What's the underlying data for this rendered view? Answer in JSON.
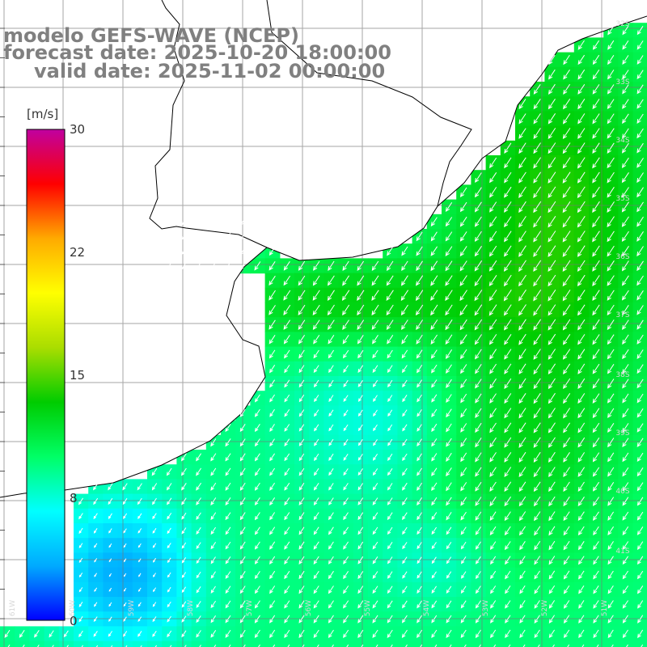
{
  "header": {
    "model_line": "modelo GEFS-WAVE (NCEP)",
    "forecast_line": "forecast date: 2025-10-20 18:00:00",
    "valid_line": "valid date: 2025-11-02 00:00:00"
  },
  "colorbar": {
    "unit": "[m/s]",
    "ticks": [
      {
        "label": "30",
        "value": 30
      },
      {
        "label": "22",
        "value": 22
      },
      {
        "label": "15",
        "value": 15
      },
      {
        "label": "8",
        "value": 8
      },
      {
        "label": "0",
        "value": 0
      }
    ],
    "min": 0,
    "max": 30,
    "colors": [
      "#0000ff",
      "#00aaff",
      "#00ffff",
      "#00ff66",
      "#00cc00",
      "#aadd00",
      "#ffff00",
      "#ffaa00",
      "#ff0000",
      "#c000a0"
    ]
  },
  "map": {
    "lat_labels": [
      "32S",
      "33S",
      "34S",
      "35S",
      "36S",
      "37S",
      "38S",
      "39S",
      "40S",
      "41S"
    ],
    "lon_labels": [
      "61W",
      "60W",
      "59W",
      "58W",
      "57W",
      "56W",
      "55W",
      "54W",
      "53W",
      "52W",
      "51W"
    ],
    "wind_direction": "southwest"
  }
}
